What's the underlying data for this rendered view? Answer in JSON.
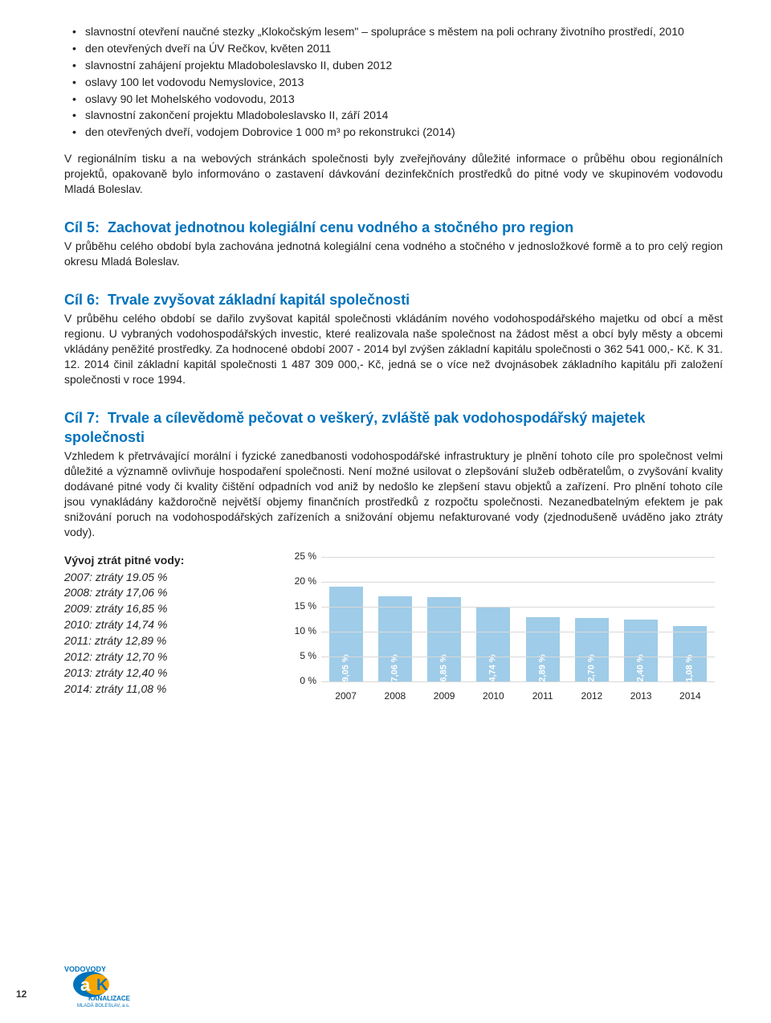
{
  "bullets": [
    "slavnostní otevření naučné stezky „Klokočským lesem\" – spolupráce s městem na poli ochrany životního prostředí, 2010",
    "den otevřených dveří na ÚV Rečkov, květen 2011",
    "slavnostní zahájení projektu Mladoboleslavsko II, duben 2012",
    "oslavy 100 let vodovodu Nemyslovice, 2013",
    "oslavy 90 let Mohelského vodovodu, 2013",
    "slavnostní zakončení projektu Mladoboleslavsko II, září 2014",
    "den otevřených dveří, vodojem Dobrovice 1 000 m³ po rekonstrukci (2014)"
  ],
  "intro_para": "V regionálním tisku a na webových stránkách společnosti byly zveřejňovány důležité informace o průběhu obou regionálních projektů, opakovaně bylo informováno o zastavení dávkování dezinfekčních prostředků do pitné vody ve skupinovém vodovodu Mladá Boleslav.",
  "cil5": {
    "label": "Cíl 5:",
    "title": "Zachovat jednotnou kolegiální cenu vodného a stočného pro region",
    "body": "V průběhu celého období byla zachována jednotná kolegiální cena vodného a stočného v jednosložkové formě a to pro celý region okresu Mladá Boleslav."
  },
  "cil6": {
    "label": "Cíl 6:",
    "title": "Trvale zvyšovat základní kapitál společnosti",
    "body": "V průběhu celého období se dařilo zvyšovat kapitál společnosti vkládáním nového vodohospodářského majetku od obcí a měst regionu. U vybraných vodohospodářských investic, které realizovala naše společnost na žádost měst a obcí byly městy a obcemi vkládány peněžité prostředky.\nZa hodnocené období 2007 - 2014 byl zvýšen základní kapitálu společnosti o 362 541 000,- Kč. K 31. 12. 2014 činil základní kapitál společnosti 1 487 309 000,- Kč, jedná se o více než dvojnásobek základního kapitálu při založení společnosti v roce 1994."
  },
  "cil7": {
    "label": "Cíl 7:",
    "title": "Trvale a cílevědomě pečovat o veškerý, zvláště pak vodohospodářský majetek společnosti",
    "body": "Vzhledem k přetrvávající morální i fyzické zanedbanosti vodohospodářské infrastruktury je plnění tohoto cíle pro společnost velmi důležité a významně ovlivňuje hospodaření společnosti. Není možné usilovat o zlepšování služeb odběratelům, o zvyšování kvality dodávané pitné vody či kvality čištění odpadních vod aniž by nedošlo ke zlepšení stavu objektů a zařízení. Pro plnění tohoto cíle jsou vynakládány každoročně největší objemy finančních prostředků z rozpočtu společnosti. Nezanedbatelným efektem je pak snižování poruch na vodohospodářských zařízeních a snižování objemu nefakturované vody (zjednodušeně uváděno jako ztráty vody)."
  },
  "losses": {
    "heading": "Vývoj ztrát pitné vody:",
    "lines": [
      "2007: ztráty 19.05 %",
      "2008: ztráty 17,06 %",
      "2009: ztráty 16,85 %",
      "2010: ztráty 14,74 %",
      "2011: ztráty 12,89 %",
      "2012: ztráty 12,70 %",
      "2013: ztráty 12,40 %",
      "2014: ztráty 11,08 %"
    ]
  },
  "chart": {
    "type": "bar",
    "categories": [
      "2007",
      "2008",
      "2009",
      "2010",
      "2011",
      "2012",
      "2013",
      "2014"
    ],
    "values": [
      19.05,
      17.06,
      16.85,
      14.74,
      12.89,
      12.7,
      12.4,
      11.08
    ],
    "value_labels": [
      "19,05 %",
      "17,06 %",
      "16,85 %",
      "14,74 %",
      "12,89 %",
      "12,70 %",
      "12,40 %",
      "11,08 %"
    ],
    "bar_color": "#9fcce8",
    "label_color": "#ffffff",
    "ymax": 25,
    "ytick_step": 5,
    "yticks": [
      "0 %",
      "5 %",
      "10 %",
      "15 %",
      "20 %",
      "25 %"
    ],
    "grid_color": "#d9d9d9",
    "font_size_axis": 12,
    "font_size_barlabel": 11
  },
  "page_number": "12",
  "logo": {
    "top": "VODOVODY",
    "bottom": "KANALIZACE",
    "sub": "MLADÁ BOLESLAV, a.s."
  }
}
